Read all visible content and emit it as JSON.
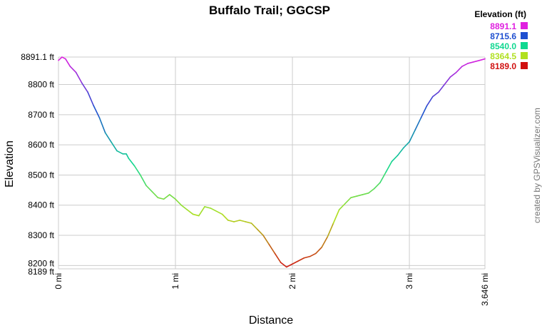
{
  "chart_data": {
    "type": "line",
    "title": "Buffalo Trail; GGCSP",
    "xlabel": "Distance",
    "ylabel": "Elevation",
    "credit": "created by GPSVisualizer.com",
    "xlim": [
      0,
      3.646
    ],
    "ylim": [
      8189.0,
      8891.1
    ],
    "x_ticks": [
      {
        "value": 0,
        "label": "0 mi"
      },
      {
        "value": 1,
        "label": "1 mi"
      },
      {
        "value": 2,
        "label": "2 mi"
      },
      {
        "value": 3,
        "label": "3 mi"
      },
      {
        "value": 3.646,
        "label": "3.646 mi"
      }
    ],
    "y_ticks": [
      {
        "value": 8189.0,
        "label": "8189 ft"
      },
      {
        "value": 8200,
        "label": "8200 ft"
      },
      {
        "value": 8300,
        "label": "8300 ft"
      },
      {
        "value": 8400,
        "label": "8400 ft"
      },
      {
        "value": 8500,
        "label": "8500 ft"
      },
      {
        "value": 8600,
        "label": "8600 ft"
      },
      {
        "value": 8700,
        "label": "8700 ft"
      },
      {
        "value": 8800,
        "label": "8800 ft"
      },
      {
        "value": 8891.1,
        "label": "8891.1 ft"
      }
    ],
    "legend": {
      "title": "Elevation (ft)",
      "position": "top-right",
      "entries": [
        {
          "label": "8891.1",
          "color": "#e020e0"
        },
        {
          "label": "8715.6",
          "color": "#1f4fd0"
        },
        {
          "label": "8540.0",
          "color": "#10d890"
        },
        {
          "label": "8364.5",
          "color": "#b0e020"
        },
        {
          "label": "8189.0",
          "color": "#d01010"
        }
      ]
    },
    "series": [
      {
        "x": [
          0.0,
          0.03,
          0.06,
          0.1,
          0.15,
          0.2,
          0.25,
          0.3,
          0.35,
          0.4,
          0.45,
          0.5,
          0.55,
          0.58,
          0.6,
          0.65,
          0.7,
          0.75,
          0.8,
          0.85,
          0.9,
          0.95,
          1.0,
          1.05,
          1.1,
          1.15,
          1.2,
          1.25,
          1.3,
          1.35,
          1.4,
          1.45,
          1.5,
          1.55,
          1.6,
          1.65,
          1.7,
          1.75,
          1.8,
          1.85,
          1.9,
          1.95,
          2.0,
          2.05,
          2.1,
          2.15,
          2.2,
          2.25,
          2.3,
          2.35,
          2.4,
          2.45,
          2.5,
          2.55,
          2.6,
          2.65,
          2.7,
          2.75,
          2.8,
          2.85,
          2.9,
          2.95,
          3.0,
          3.05,
          3.1,
          3.15,
          3.2,
          3.25,
          3.3,
          3.35,
          3.4,
          3.45,
          3.5,
          3.55,
          3.6,
          3.646
        ],
        "y": [
          8880,
          8891,
          8885,
          8860,
          8840,
          8805,
          8775,
          8730,
          8690,
          8640,
          8610,
          8580,
          8570,
          8570,
          8555,
          8530,
          8500,
          8465,
          8445,
          8425,
          8420,
          8435,
          8420,
          8400,
          8385,
          8370,
          8365,
          8395,
          8390,
          8380,
          8370,
          8350,
          8345,
          8350,
          8345,
          8340,
          8320,
          8300,
          8270,
          8240,
          8210,
          8195,
          8205,
          8215,
          8225,
          8230,
          8240,
          8260,
          8295,
          8340,
          8385,
          8405,
          8425,
          8430,
          8435,
          8440,
          8455,
          8475,
          8510,
          8545,
          8565,
          8590,
          8610,
          8650,
          8690,
          8730,
          8760,
          8775,
          8800,
          8825,
          8840,
          8860,
          8870,
          8875,
          8880,
          8885
        ]
      }
    ]
  }
}
